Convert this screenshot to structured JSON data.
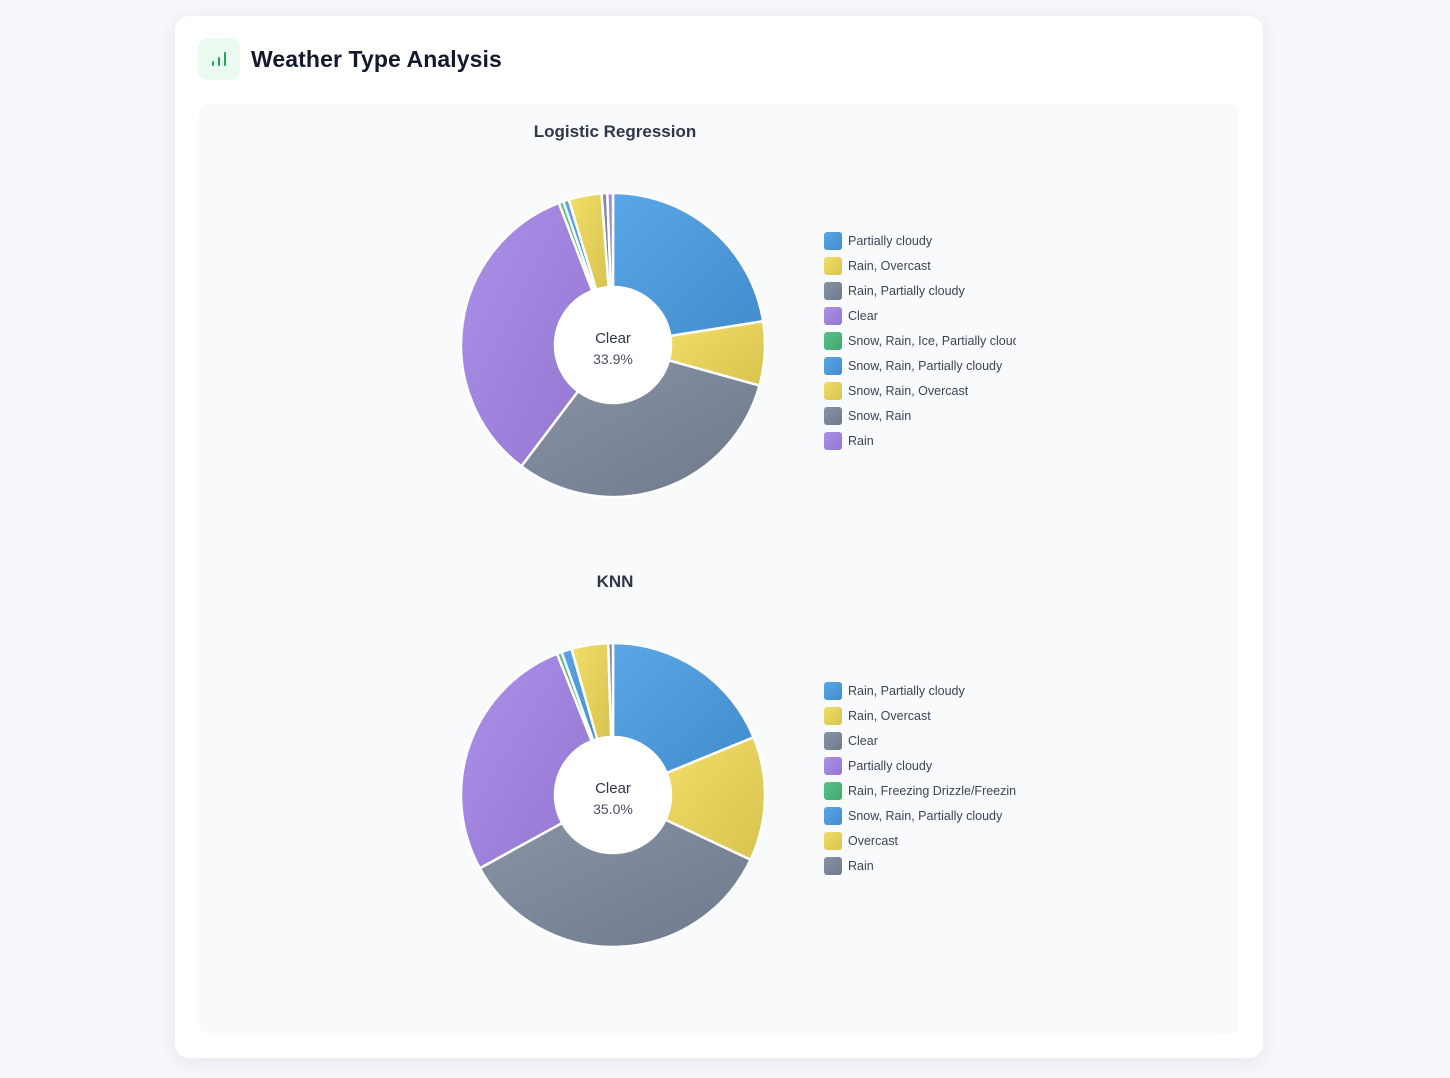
{
  "header": {
    "title": "Weather Type Analysis",
    "icon": "bar-chart-icon",
    "icon_color": "#22a55a"
  },
  "chart_data": [
    {
      "type": "pie",
      "title": "Logistic Regression",
      "center_label": "Clear",
      "center_value": "33.9%",
      "categories": [
        "Partially cloudy",
        "Rain, Overcast",
        "Rain, Partially cloudy",
        "Clear",
        "Snow, Rain, Ice, Partially cloudy",
        "Snow, Rain, Partially cloudy",
        "Snow, Rain, Overcast",
        "Snow, Rain",
        "Rain"
      ],
      "values": [
        22.5,
        6.8,
        31.0,
        33.9,
        0.5,
        0.6,
        3.5,
        0.6,
        0.6
      ],
      "colors": [
        "#4d98d8",
        "#e4cf5b",
        "#7a8698",
        "#9e82db",
        "#4cb47a",
        "#4d98d8",
        "#e4cf5b",
        "#7a8698",
        "#9e82db"
      ],
      "legend": "right"
    },
    {
      "type": "pie",
      "title": "KNN",
      "center_label": "Clear",
      "center_value": "35.0%",
      "categories": [
        "Rain, Partially cloudy",
        "Rain, Overcast",
        "Clear",
        "Partially cloudy",
        "Rain, Freezing Drizzle/Freezing Rain",
        "Snow, Rain, Partially cloudy",
        "Overcast",
        "Rain"
      ],
      "values": [
        18.8,
        13.2,
        35.0,
        27.0,
        0.5,
        1.1,
        3.9,
        0.5
      ],
      "colors": [
        "#4d98d8",
        "#e4cf5b",
        "#7a8698",
        "#9e82db",
        "#4cb47a",
        "#4d98d8",
        "#e4cf5b",
        "#7a8698"
      ],
      "legend": "right"
    }
  ]
}
